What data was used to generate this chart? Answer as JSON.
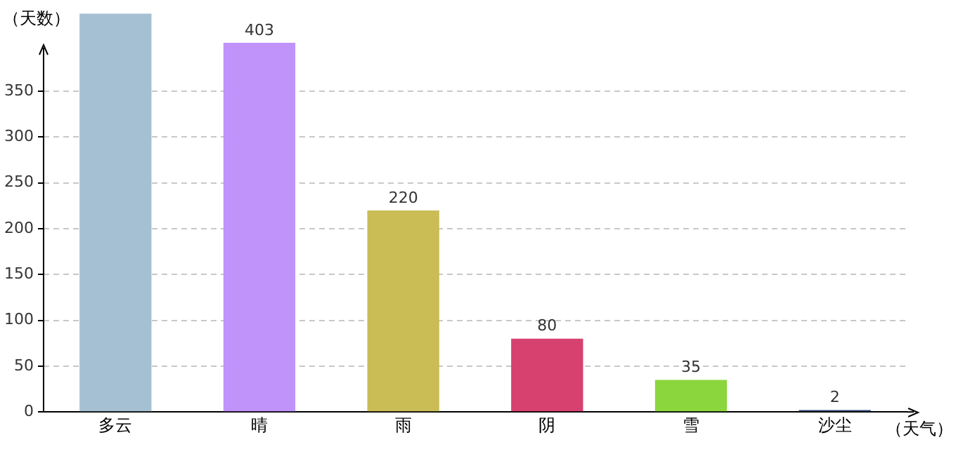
{
  "chart_data": {
    "type": "bar",
    "xlabel": "（天气）",
    "ylabel": "（天数）",
    "categories": [
      "多云",
      "晴",
      "雨",
      "阴",
      "雪",
      "沙尘"
    ],
    "values": [
      435,
      403,
      220,
      80,
      35,
      2
    ],
    "value_labels": [
      null,
      "403",
      "220",
      "80",
      "35",
      "2"
    ],
    "colors": [
      "#a5c0d2",
      "#c093fb",
      "#cabd55",
      "#d64170",
      "#8bd63d",
      "#2b4d80"
    ],
    "ylim": [
      0,
      435
    ],
    "yticks": [
      0,
      50,
      100,
      150,
      200,
      250,
      300,
      350
    ],
    "grid": "y",
    "legend": false
  }
}
